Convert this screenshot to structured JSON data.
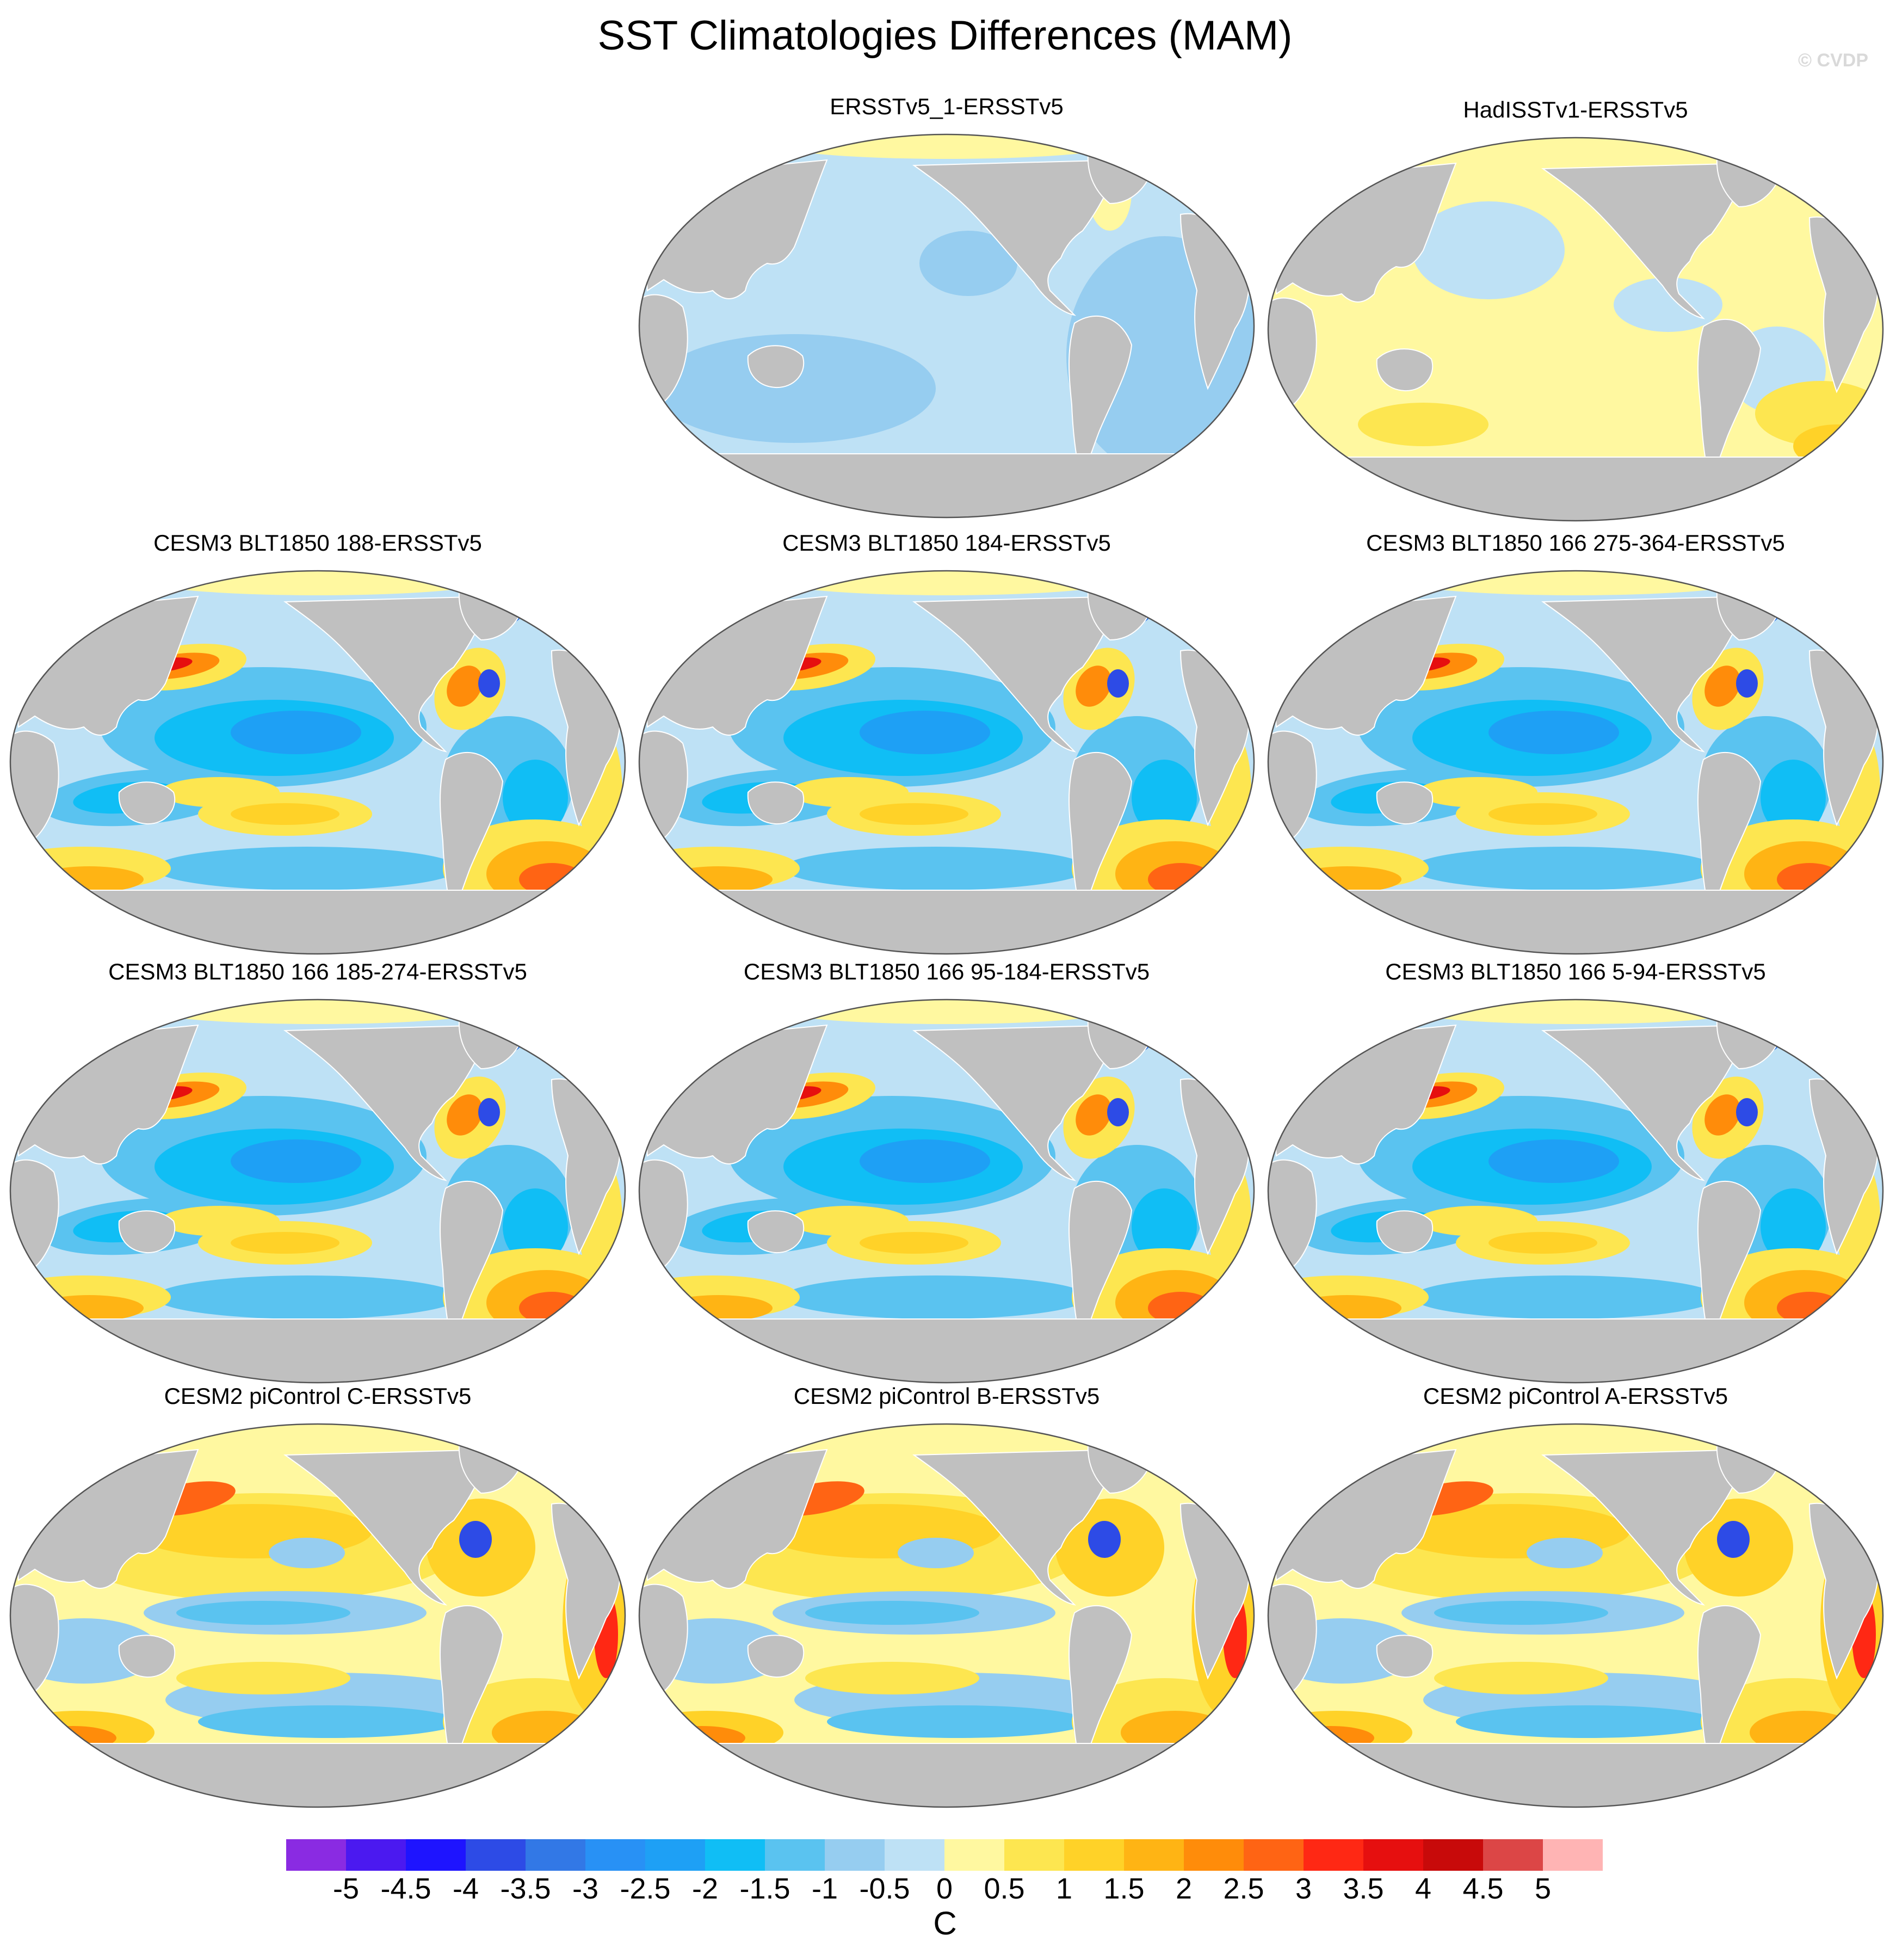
{
  "title": "SST Climatologies Differences (MAM)",
  "copyright": "© CVDP",
  "colors": {
    "land": "#c0c0c0",
    "ocean_border": "#555555",
    "palette": [
      "#8a2be2",
      "#4b19f0",
      "#1e14ff",
      "#2d4be6",
      "#3278e6",
      "#2891f5",
      "#1ea0f5",
      "#10bef5",
      "#5ac3f0",
      "#96cdf0",
      "#bee1f5",
      "#fff8a0",
      "#fde650",
      "#ffd228",
      "#ffb414",
      "#ff8c0a",
      "#ff6414",
      "#ff2814",
      "#e60f0f",
      "#c80a0a",
      "#dc4646",
      "#ffb4b4"
    ]
  },
  "colorbar": {
    "labels": [
      "-5",
      "-4.5",
      "-4",
      "-3.5",
      "-3",
      "-2.5",
      "-2",
      "-1.5",
      "-1",
      "-0.5",
      "0",
      "0.5",
      "1",
      "1.5",
      "2",
      "2.5",
      "3",
      "3.5",
      "4",
      "4.5",
      "5"
    ],
    "units": "C"
  },
  "panels": [
    {
      "title": "ERSSTv5_1-ERSSTv5",
      "style": "cool-uniform"
    },
    {
      "title": "HadISSTv1-ERSSTv5",
      "style": "warm-uniform"
    },
    {
      "title": "CESM3 BLT1850 188-ERSSTv5",
      "style": "cesm3"
    },
    {
      "title": "CESM3 BLT1850 184-ERSSTv5",
      "style": "cesm3"
    },
    {
      "title": "CESM3 BLT1850 166 275-364-ERSSTv5",
      "style": "cesm3"
    },
    {
      "title": "CESM3 BLT1850 166 185-274-ERSSTv5",
      "style": "cesm3"
    },
    {
      "title": "CESM3 BLT1850 166 95-184-ERSSTv5",
      "style": "cesm3"
    },
    {
      "title": "CESM3 BLT1850 166 5-94-ERSSTv5",
      "style": "cesm3"
    },
    {
      "title": "CESM2 piControl C-ERSSTv5",
      "style": "cesm2"
    },
    {
      "title": "CESM2 piControl B-ERSSTv5",
      "style": "cesm2"
    },
    {
      "title": "CESM2 piControl A-ERSSTv5",
      "style": "cesm2"
    }
  ]
}
